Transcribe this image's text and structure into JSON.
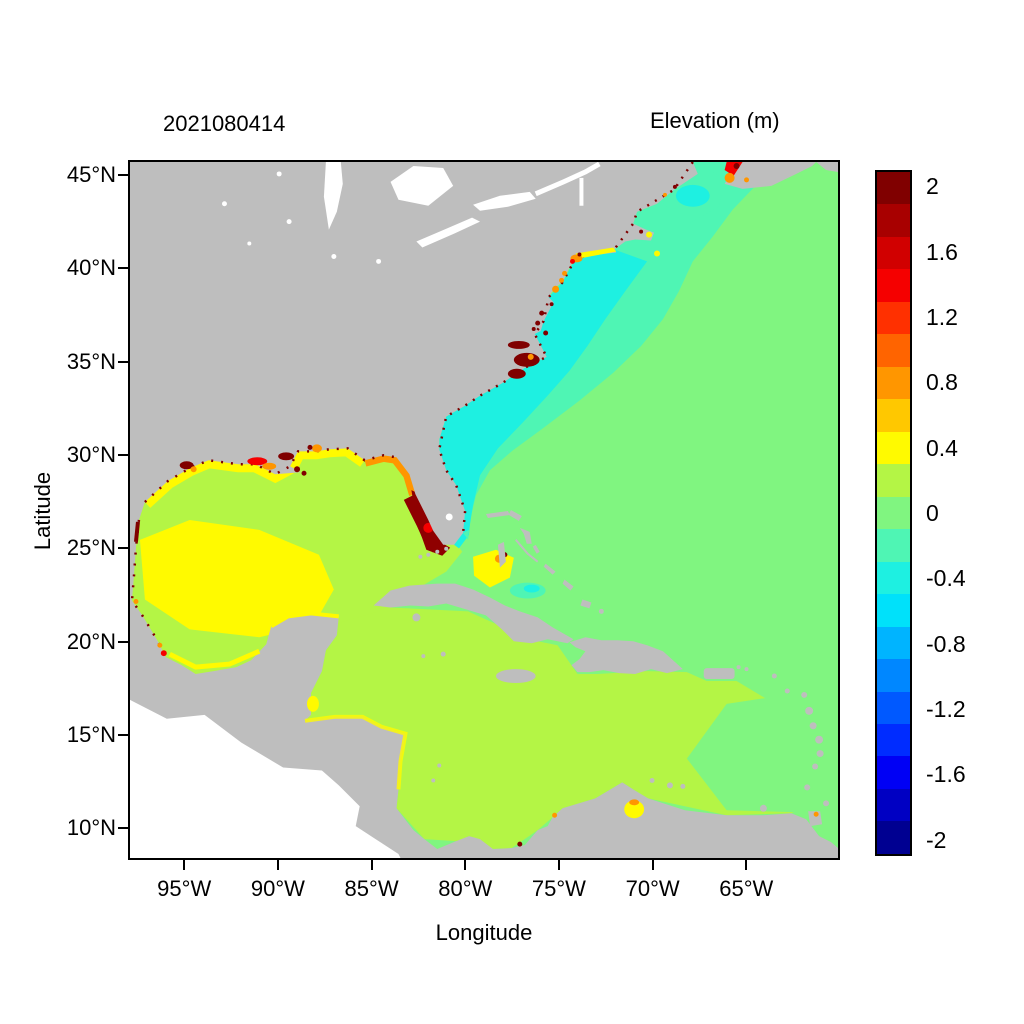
{
  "titles": {
    "date_stamp": "2021080414",
    "colorbar_title": "Elevation (m)"
  },
  "axes": {
    "x_label": "Longitude",
    "y_label": "Latitude",
    "x_tick_labels": [
      "95°W",
      "90°W",
      "85°W",
      "80°W",
      "75°W",
      "70°W",
      "65°W"
    ],
    "x_tick_deg": [
      -95,
      -90,
      -85,
      -80,
      -75,
      -70,
      -65
    ],
    "y_tick_labels": [
      "45°N",
      "40°N",
      "35°N",
      "30°N",
      "25°N",
      "20°N",
      "15°N",
      "10°N"
    ],
    "y_tick_deg": [
      45,
      40,
      35,
      30,
      25,
      20,
      15,
      10
    ]
  },
  "colorbar": {
    "units": "m",
    "tick_labels": [
      "2",
      "1.6",
      "1.2",
      "0.8",
      "0.4",
      "0",
      "-0.4",
      "-0.8",
      "-1.2",
      "-1.6",
      "-2"
    ],
    "tick_values": [
      2,
      1.6,
      1.2,
      0.8,
      0.4,
      0,
      -0.4,
      -0.8,
      -1.2,
      -1.6,
      -2
    ],
    "value_max": 2.1,
    "value_min": -2.1,
    "block_step": 0.2,
    "block_colors": [
      "#800000",
      "#A80000",
      "#D10000",
      "#F50000",
      "#FF3000",
      "#FF6400",
      "#FF9600",
      "#FFC800",
      "#FFFA00",
      "#B4F545",
      "#80F580",
      "#4FF5B4",
      "#1EF0E1",
      "#00E1FA",
      "#00B4FF",
      "#0087FF",
      "#0059FF",
      "#002CFF",
      "#0000F5",
      "#0000C3",
      "#000091"
    ]
  },
  "palette": {
    "land": "#BEBEBE",
    "outside": "#FFFFFF",
    "ocean_zero": "#80F580",
    "carib_gulf": "#B4F545",
    "yellow": "#FFFA00",
    "orange": "#FF9600",
    "orange_red": "#FF6400",
    "red": "#F50000",
    "dark_red": "#8F0000",
    "maroon": "#800000",
    "spring": "#4FF5B4",
    "turquoise": "#1EF0E1"
  },
  "chart_data": {
    "type": "heatmap",
    "title": "Elevation (m)",
    "run_timestamp": "2021080414",
    "xlabel": "Longitude",
    "ylabel": "Latitude",
    "lon_range_deg": [
      -98.1,
      -60.1
    ],
    "lat_range_deg": [
      8.2,
      45.8
    ],
    "x_ticks_deg": [
      -95,
      -90,
      -85,
      -80,
      -75,
      -70,
      -65
    ],
    "y_ticks_deg": [
      45,
      40,
      35,
      30,
      25,
      20,
      15,
      10
    ],
    "colorbar": {
      "min": -2.1,
      "max": 2.1,
      "step": 0.2,
      "ticks": [
        2,
        1.6,
        1.2,
        0.8,
        0.4,
        0,
        -0.4,
        -0.8,
        -1.2,
        -1.6,
        -2
      ],
      "units": "m",
      "scheme": "jet (blue=low, dark red=high)",
      "position": "right"
    },
    "land_color": "#BEBEBE",
    "no_data_color": "#FFFFFF",
    "regions": [
      {
        "name": "Open Atlantic Ocean",
        "elevation_m": 0.0
      },
      {
        "name": "US east coast shelf band, Florida to Gulf of Maine",
        "elevation_m": -0.3
      },
      {
        "name": "Mid-Atlantic Bight nearshore core",
        "elevation_m": -0.45
      },
      {
        "name": "Eastern Gulf of Mexico",
        "elevation_m": 0.25
      },
      {
        "name": "West-central Gulf of Mexico",
        "elevation_m": 0.45
      },
      {
        "name": "Northern Gulf shelf (TX-LA-MS-AL)",
        "elevation_m": 0.5
      },
      {
        "name": "Louisiana coastal hotspots",
        "elevation_m": 1.3
      },
      {
        "name": "Big Bend / west Florida shelf nearshore",
        "elevation_m": 0.9
      },
      {
        "name": "Southwest Florida coast (maximum, dark red)",
        "elevation_m": 2.0
      },
      {
        "name": "Western Caribbean Sea",
        "elevation_m": 0.25
      },
      {
        "name": "Eastern Caribbean Sea",
        "elevation_m": 0.05
      },
      {
        "name": "Great Bahama Bank",
        "elevation_m": 0.45
      },
      {
        "name": "North Carolina sounds (dark red patches)",
        "elevation_m": 2.0
      },
      {
        "name": "New York Harbor / Long Island Sound",
        "elevation_m": 0.7
      },
      {
        "name": "Bay of Fundy head",
        "elevation_m": 1.6
      },
      {
        "name": "Lake Maracaibo",
        "elevation_m": 0.5
      },
      {
        "name": "Gulf of Maine nearshore",
        "elevation_m": -0.35
      }
    ]
  }
}
